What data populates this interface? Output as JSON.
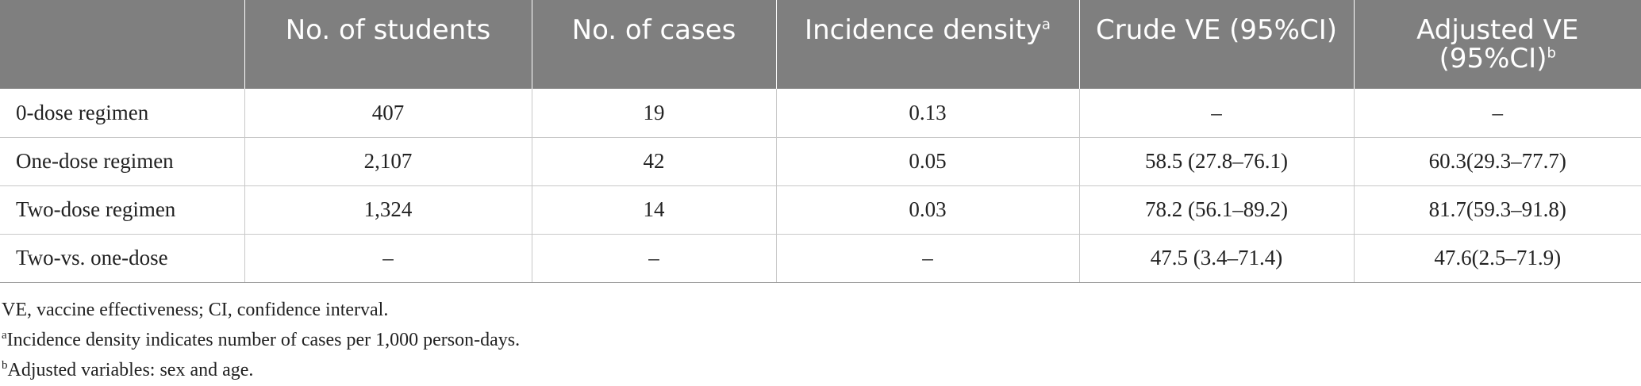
{
  "table": {
    "headers": [
      {
        "text": "",
        "sup": ""
      },
      {
        "text": "No. of students",
        "sup": ""
      },
      {
        "text": "No. of cases",
        "sup": ""
      },
      {
        "text": "Incidence density",
        "sup": "a"
      },
      {
        "text": "Crude VE (95%CI)",
        "sup": ""
      },
      {
        "text": "Adjusted VE (95%CI)",
        "sup": "b"
      }
    ],
    "rows": [
      [
        "0-dose regimen",
        "407",
        "19",
        "0.13",
        "–",
        "–"
      ],
      [
        "One-dose regimen",
        "2,107",
        "42",
        "0.05",
        "58.5 (27.8–76.1)",
        "60.3(29.3–77.7)"
      ],
      [
        "Two-dose regimen",
        "1,324",
        "14",
        "0.03",
        "78.2 (56.1–89.2)",
        "81.7(59.3–91.8)"
      ],
      [
        "Two-vs. one-dose",
        "–",
        "–",
        "–",
        "47.5 (3.4–71.4)",
        "47.6(2.5–71.9)"
      ]
    ]
  },
  "footnotes": [
    {
      "mark": "",
      "text": "VE, vaccine effectiveness; CI, confidence interval."
    },
    {
      "mark": "a",
      "text": "Incidence density indicates number of cases per 1,000 person-days."
    },
    {
      "mark": "b",
      "text": "Adjusted variables: sex and age."
    }
  ],
  "colors": {
    "header_bg": "#7f7f7f",
    "header_text": "#ffffff",
    "rule": "#c8c8c8"
  }
}
